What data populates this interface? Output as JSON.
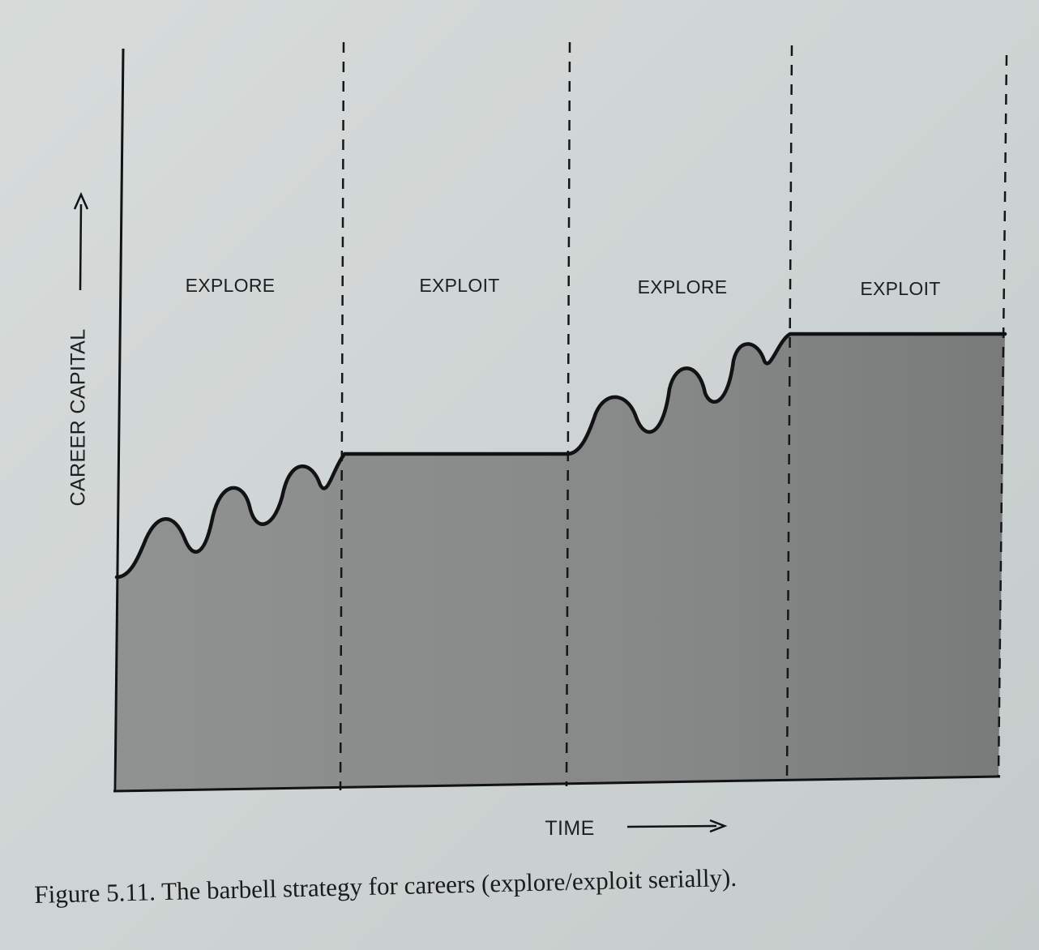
{
  "diagram": {
    "y_axis_label": "CAREER CAPITAL",
    "x_axis_label": "TIME",
    "phases": [
      {
        "label": "EXPLORE"
      },
      {
        "label": "EXPLOIT"
      },
      {
        "label": "EXPLORE"
      },
      {
        "label": "EXPLOIT"
      }
    ],
    "colors": {
      "fill": "#8c8f8e",
      "fill_dark": "#7b7e7d",
      "line": "#111213",
      "paper": "#d2d7d6"
    }
  },
  "caption": "Figure 5.11. The barbell strategy for careers (explore/exploit serially)."
}
